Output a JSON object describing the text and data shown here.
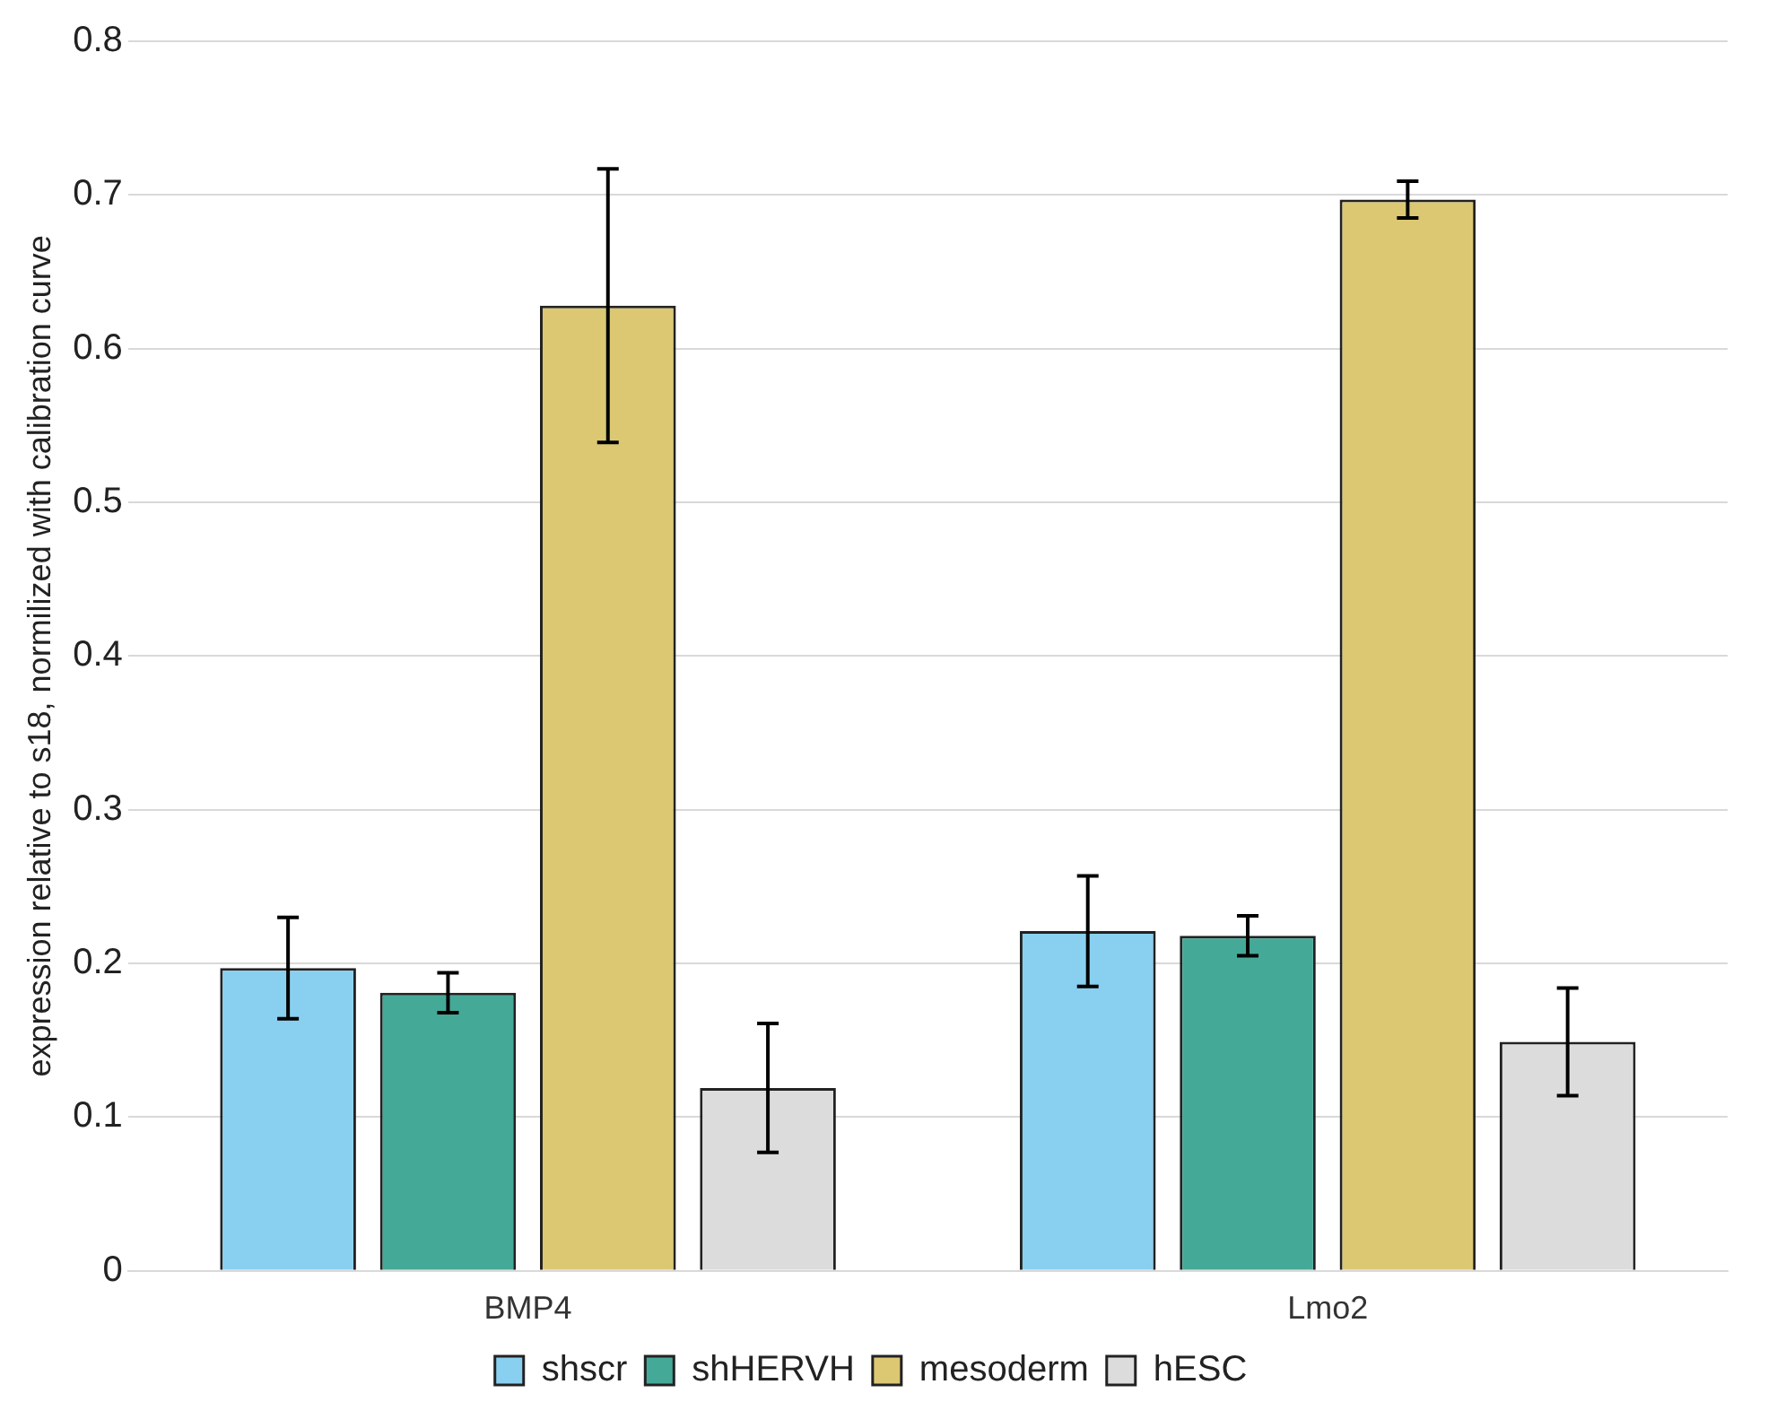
{
  "chart_data": {
    "type": "bar",
    "ylabel": "expression relative to s18, normilized with calibration curve",
    "categories": [
      "BMP4",
      "Lmo2"
    ],
    "series": [
      {
        "name": "shscr",
        "color": "#89cff0",
        "values": [
          0.197,
          0.221
        ],
        "errors": [
          0.033,
          0.036
        ]
      },
      {
        "name": "shHERVH",
        "color": "#45a998",
        "values": [
          0.181,
          0.218
        ],
        "errors": [
          0.013,
          0.013
        ]
      },
      {
        "name": "mesoderm",
        "color": "#dcc873",
        "values": [
          0.628,
          0.697
        ],
        "errors": [
          0.089,
          0.012
        ]
      },
      {
        "name": "hESC",
        "color": "#dcdcdc",
        "values": [
          0.119,
          0.149
        ],
        "errors": [
          0.042,
          0.035
        ]
      }
    ],
    "ylim": [
      0,
      0.8
    ],
    "yticks": [
      0,
      0.1,
      0.2,
      0.3,
      0.4,
      0.5,
      0.6,
      0.7,
      0.8
    ],
    "grid": "y",
    "legend": "bottom"
  }
}
